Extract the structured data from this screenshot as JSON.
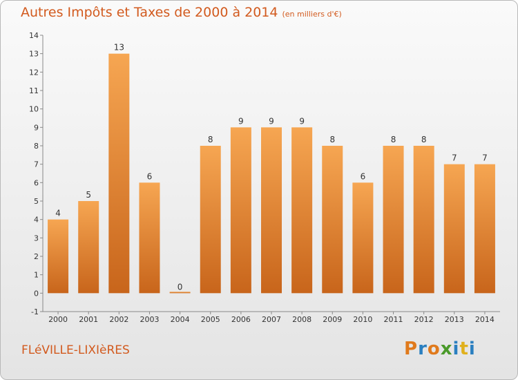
{
  "chart_data": {
    "type": "bar",
    "title": "Autres Impôts et Taxes de 2000 à 2014",
    "subtitle": "(en milliers d'€)",
    "categories": [
      "2000",
      "2001",
      "2002",
      "2003",
      "2004",
      "2005",
      "2006",
      "2007",
      "2008",
      "2009",
      "2010",
      "2011",
      "2012",
      "2013",
      "2014"
    ],
    "values": [
      4,
      5,
      13,
      6,
      0,
      8,
      9,
      9,
      9,
      8,
      6,
      8,
      8,
      7,
      7
    ],
    "ylim": [
      -1,
      14
    ],
    "yticks": [
      "-1",
      "0",
      "1",
      "2",
      "3",
      "4",
      "5",
      "6",
      "7",
      "8",
      "9",
      "10",
      "11",
      "12",
      "13",
      "14"
    ],
    "xlabel": "",
    "ylabel": "",
    "grid": false
  },
  "footer": {
    "commune": "FLéVILLE-LIXIèRES",
    "brand": "Proxiti"
  },
  "colors": {
    "bar_light": "#f6a652",
    "bar_dark": "#c8651b",
    "title": "#d25a1e"
  }
}
